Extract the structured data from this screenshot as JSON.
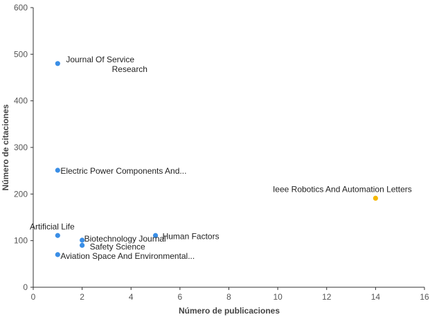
{
  "chart_data": {
    "type": "scatter",
    "title": "",
    "xlabel": "Número de publicaciones",
    "ylabel": "Número de citaciones",
    "xlim": [
      0,
      16
    ],
    "ylim": [
      0,
      600
    ],
    "xticks": [
      0,
      2,
      4,
      6,
      8,
      10,
      12,
      14,
      16
    ],
    "yticks": [
      0,
      100,
      200,
      300,
      400,
      500,
      600
    ],
    "grid": false,
    "legend": "none",
    "colors": {
      "default": "#3a8ee6",
      "highlight": "#f5b800"
    },
    "points": [
      {
        "label": "Journal Of Service Research",
        "x": 1,
        "y": 480,
        "color": "#3a8ee6"
      },
      {
        "label": "Electric Power Components And...",
        "x": 1,
        "y": 251,
        "color": "#3a8ee6"
      },
      {
        "label": "Ieee Robotics And Automation Letters",
        "x": 14,
        "y": 191,
        "color": "#f5b800"
      },
      {
        "label": "Artificial Life",
        "x": 1,
        "y": 111,
        "color": "#3a8ee6"
      },
      {
        "label": "Human Factors",
        "x": 5,
        "y": 111,
        "color": "#3a8ee6"
      },
      {
        "label": "Biotechnology Journal",
        "x": 2,
        "y": 101,
        "color": "#3a8ee6"
      },
      {
        "label": "Safety Science",
        "x": 2,
        "y": 90,
        "color": "#3a8ee6"
      },
      {
        "label": "Aviation Space And Environmental...",
        "x": 1,
        "y": 70,
        "color": "#3a8ee6"
      }
    ]
  }
}
